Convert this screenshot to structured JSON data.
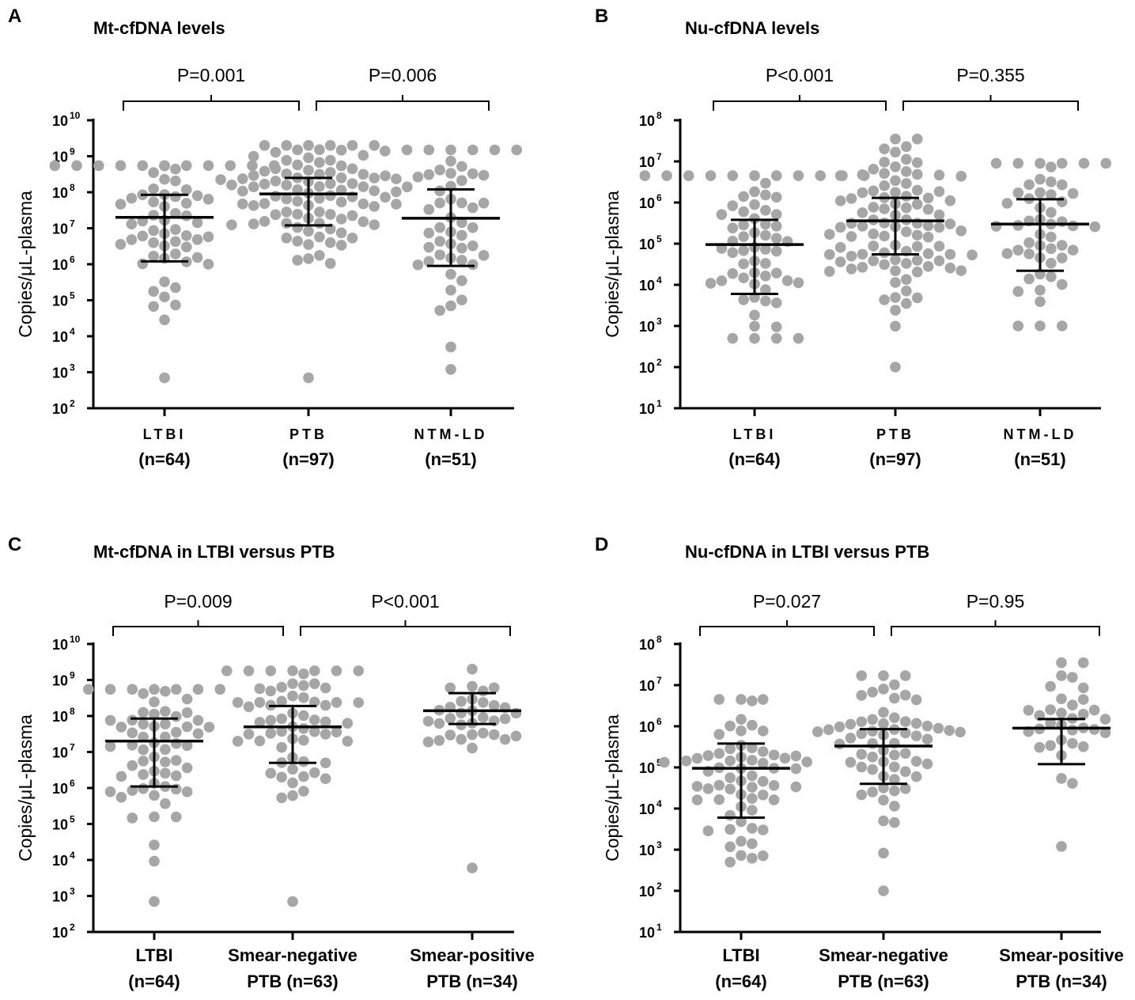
{
  "colors": {
    "dot": "#a6a6a6",
    "line": "#000000"
  },
  "chart_data": [
    {
      "id": "A",
      "type": "scatter",
      "panel_letter": "A",
      "title": "Mt-cfDNA levels",
      "ylabel": "Copies/μL-plasma",
      "yscale": "log",
      "ylim_exp": [
        2,
        10
      ],
      "yticks": [
        {
          "base": "10",
          "exp": "2"
        },
        {
          "base": "10",
          "exp": "3"
        },
        {
          "base": "10",
          "exp": "4"
        },
        {
          "base": "10",
          "exp": "5"
        },
        {
          "base": "10",
          "exp": "6"
        },
        {
          "base": "10",
          "exp": "7"
        },
        {
          "base": "10",
          "exp": "8"
        },
        {
          "base": "10",
          "exp": "9"
        },
        {
          "base": "10",
          "exp": "10"
        }
      ],
      "label_style": "spaced",
      "categories": [
        {
          "line1": "LTBI",
          "line2": "(n=64)",
          "n": 64,
          "median": 20000000,
          "q1": 1200000,
          "q3": 85000000,
          "range": [
            700,
            550000000
          ]
        },
        {
          "line1": "PTB",
          "line2": "(n=97)",
          "n": 97,
          "median": 90000000,
          "q1": 12000000,
          "q3": 250000000,
          "range": [
            700,
            2000000000
          ]
        },
        {
          "line1": "NTM-LD",
          "line2": "(n=51)",
          "n": 51,
          "median": 19000000,
          "q1": 900000,
          "q3": 120000000,
          "range": [
            1200,
            1500000000
          ]
        }
      ],
      "comparisons": [
        {
          "from": 0,
          "to": 1,
          "label": "P=0.001"
        },
        {
          "from": 1,
          "to": 2,
          "label": "P=0.006"
        }
      ]
    },
    {
      "id": "B",
      "type": "scatter",
      "panel_letter": "B",
      "title": "Nu-cfDNA levels",
      "ylabel": "Copies/μL-plasma",
      "yscale": "log",
      "ylim_exp": [
        1,
        8
      ],
      "yticks": [
        {
          "base": "10",
          "exp": "1"
        },
        {
          "base": "10",
          "exp": "2"
        },
        {
          "base": "10",
          "exp": "3"
        },
        {
          "base": "10",
          "exp": "4"
        },
        {
          "base": "10",
          "exp": "5"
        },
        {
          "base": "10",
          "exp": "6"
        },
        {
          "base": "10",
          "exp": "7"
        },
        {
          "base": "10",
          "exp": "8"
        }
      ],
      "label_style": "spaced",
      "categories": [
        {
          "line1": "LTBI",
          "line2": "(n=64)",
          "n": 64,
          "median": 95000,
          "q1": 6000,
          "q3": 380000,
          "range": [
            500,
            4500000
          ]
        },
        {
          "line1": "PTB",
          "line2": "(n=97)",
          "n": 97,
          "median": 360000,
          "q1": 55000,
          "q3": 1300000,
          "range": [
            100,
            35000000
          ]
        },
        {
          "line1": "NTM-LD",
          "line2": "(n=51)",
          "n": 51,
          "median": 300000,
          "q1": 22000,
          "q3": 1200000,
          "range": [
            1000,
            9000000
          ]
        }
      ],
      "comparisons": [
        {
          "from": 0,
          "to": 1,
          "label": "P<0.001"
        },
        {
          "from": 1,
          "to": 2,
          "label": "P=0.355"
        }
      ]
    },
    {
      "id": "C",
      "type": "scatter",
      "panel_letter": "C",
      "title": "Mt-cfDNA in LTBI versus PTB",
      "ylabel": "Copies/μL-plasma",
      "yscale": "log",
      "ylim_exp": [
        2,
        10
      ],
      "yticks": [
        {
          "base": "10",
          "exp": "2"
        },
        {
          "base": "10",
          "exp": "3"
        },
        {
          "base": "10",
          "exp": "4"
        },
        {
          "base": "10",
          "exp": "5"
        },
        {
          "base": "10",
          "exp": "6"
        },
        {
          "base": "10",
          "exp": "7"
        },
        {
          "base": "10",
          "exp": "8"
        },
        {
          "base": "10",
          "exp": "9"
        },
        {
          "base": "10",
          "exp": "10"
        }
      ],
      "label_style": "plain",
      "categories": [
        {
          "line1": "LTBI",
          "line2": "(n=64)",
          "n": 64,
          "median": 20000000,
          "q1": 1100000,
          "q3": 85000000,
          "range": [
            700,
            550000000
          ]
        },
        {
          "line1": "Smear-negative",
          "line2": "PTB (n=63)",
          "n": 63,
          "median": 50000000,
          "q1": 5000000,
          "q3": 190000000,
          "range": [
            700,
            1800000000
          ]
        },
        {
          "line1": "Smear-positive",
          "line2": "PTB (n=34)",
          "n": 34,
          "median": 140000000,
          "q1": 60000000,
          "q3": 430000000,
          "range": [
            6000,
            2000000000
          ]
        }
      ],
      "comparisons": [
        {
          "from": 0,
          "to": 1,
          "label": "P=0.009"
        },
        {
          "from": 1,
          "to": 2,
          "label": "P<0.001"
        }
      ]
    },
    {
      "id": "D",
      "type": "scatter",
      "panel_letter": "D",
      "title": "Nu-cfDNA in LTBI versus PTB",
      "ylabel": "Copies/μL-plasma",
      "yscale": "log",
      "ylim_exp": [
        1,
        8
      ],
      "yticks": [
        {
          "base": "10",
          "exp": "1"
        },
        {
          "base": "10",
          "exp": "2"
        },
        {
          "base": "10",
          "exp": "3"
        },
        {
          "base": "10",
          "exp": "4"
        },
        {
          "base": "10",
          "exp": "5"
        },
        {
          "base": "10",
          "exp": "6"
        },
        {
          "base": "10",
          "exp": "7"
        },
        {
          "base": "10",
          "exp": "8"
        }
      ],
      "label_style": "plain",
      "categories": [
        {
          "line1": "LTBI",
          "line2": "(n=64)",
          "n": 64,
          "median": 95000,
          "q1": 6000,
          "q3": 380000,
          "range": [
            500,
            4500000
          ]
        },
        {
          "line1": "Smear-negative",
          "line2": "PTB (n=63)",
          "n": 63,
          "median": 330000,
          "q1": 40000,
          "q3": 850000,
          "range": [
            100,
            17000000
          ]
        },
        {
          "line1": "Smear-positive",
          "line2": "PTB (n=34)",
          "n": 34,
          "median": 900000,
          "q1": 120000,
          "q3": 1500000,
          "range": [
            1200,
            35000000
          ]
        }
      ],
      "comparisons": [
        {
          "from": 0,
          "to": 1,
          "label": "P=0.027"
        },
        {
          "from": 1,
          "to": 2,
          "label": "P=0.95"
        }
      ]
    }
  ]
}
